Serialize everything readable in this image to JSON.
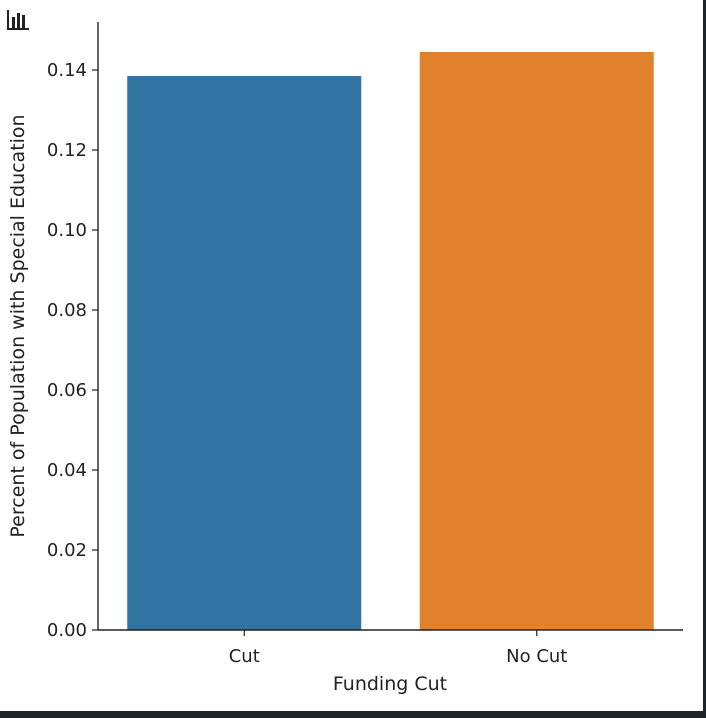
{
  "toolbar": {
    "icon": "bar-chart-icon"
  },
  "colors": {
    "background_frame": "#1e2328",
    "text": "#222222",
    "axis": "#222222"
  },
  "chart_data": {
    "type": "bar",
    "categories": [
      "Cut",
      "No Cut"
    ],
    "values": [
      0.1385,
      0.1445
    ],
    "colors": [
      "#3274a1",
      "#e1812c"
    ],
    "title": "",
    "xlabel": "Funding Cut",
    "ylabel": "Percent of Population with Special Education",
    "ylim": [
      0,
      0.152
    ],
    "yticks": [
      "0.00",
      "0.02",
      "0.04",
      "0.06",
      "0.08",
      "0.10",
      "0.12",
      "0.14"
    ],
    "grid": false,
    "legend": false
  }
}
